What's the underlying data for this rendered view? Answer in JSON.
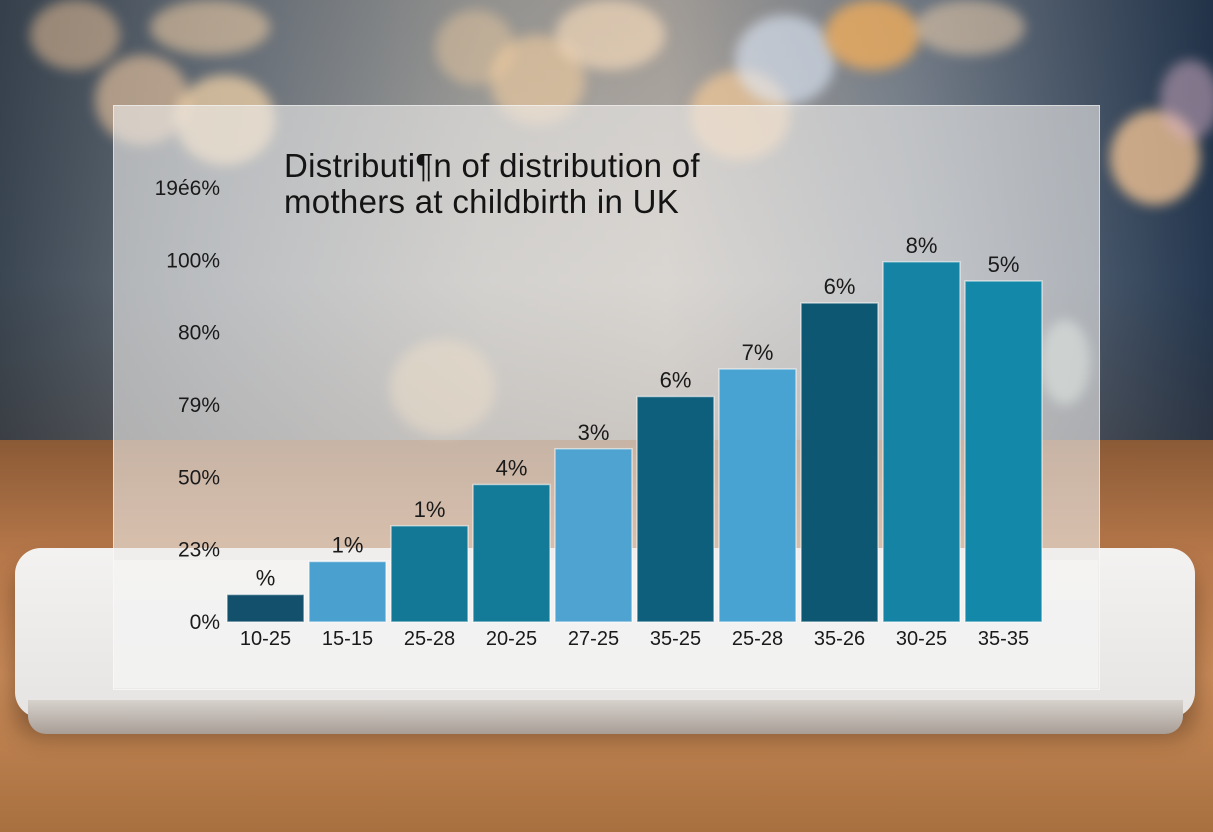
{
  "chart_data": {
    "type": "bar",
    "title": "Distributi¶n  of distribution of\nmothers at childbirth in UK",
    "y_tick_labels": [
      "0%",
      "23%",
      "50%",
      "79%",
      "80%",
      "100%",
      "19é6%"
    ],
    "categories": [
      "10-25",
      "15-15",
      "25-28",
      "20-25",
      "27-25",
      "35-25",
      "25-28",
      "35-26",
      "30-25",
      "35-35"
    ],
    "values": [
      10,
      22,
      35,
      50,
      63,
      82,
      92,
      116,
      131,
      124
    ],
    "value_axis": {
      "ylim": [
        0,
        160
      ],
      "note": "relative bar heights read against the drawn tick positions"
    },
    "data_labels": [
      "%",
      "1%",
      "1%",
      "4%",
      "3%",
      "6%",
      "7%",
      "6%",
      "8%",
      "5%"
    ],
    "bar_colors": [
      "#12506b",
      "#4aa0cf",
      "#127896",
      "#137a98",
      "#4ea3d0",
      "#0e5f7c",
      "#48a3d3",
      "#0d5772",
      "#1584a4",
      "#1488a8"
    ],
    "grid": false,
    "legend": "none"
  },
  "colors": {
    "label_text": "#1a1a1a",
    "panel": "#eeecea"
  }
}
